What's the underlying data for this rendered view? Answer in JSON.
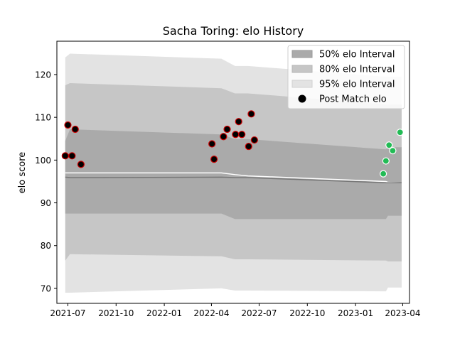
{
  "chart_data": {
    "type": "scatter",
    "title": "Sacha Toring: elo History",
    "xlabel": "",
    "ylabel": "elo score",
    "ylim": [
      66.5,
      127.8
    ],
    "xlim": [
      "2021-06-10",
      "2023-04-14"
    ],
    "x_ticks": [
      "2021-07",
      "2021-10",
      "2022-01",
      "2022-04",
      "2022-07",
      "2022-10",
      "2023-01",
      "2023-04"
    ],
    "y_ticks": [
      70,
      80,
      90,
      100,
      110,
      120
    ],
    "grid": false,
    "legend": {
      "position": "top-right",
      "entries": [
        "50% elo Interval",
        "80% elo Interval",
        "95% elo Interval",
        "Post Match elo"
      ]
    },
    "bands": {
      "x": [
        "2021-06-26",
        "2021-07-05",
        "2022-04-20",
        "2022-05-16",
        "2022-06-10",
        "2023-02-28",
        "2023-03-04",
        "2023-03-30"
      ],
      "mean": [
        96.0,
        95.9,
        96.0,
        95.9,
        95.9,
        94.7,
        94.7,
        94.7
      ],
      "q50_low": [
        87.5,
        87.5,
        87.5,
        86.2,
        86.2,
        86.2,
        87.0,
        87.0
      ],
      "q50_high": [
        104.5,
        107.2,
        106.0,
        104.9,
        104.9,
        102.5,
        103.0,
        103.0
      ],
      "q80_low": [
        76.5,
        78.0,
        77.5,
        76.8,
        76.8,
        76.5,
        76.3,
        76.3
      ],
      "q80_high": [
        117.5,
        118.0,
        116.8,
        115.6,
        115.6,
        113.0,
        113.0,
        113.0
      ],
      "q95_low": [
        69.0,
        69.0,
        70.0,
        69.5,
        69.5,
        69.3,
        70.2,
        70.2
      ],
      "q95_high": [
        124.0,
        124.9,
        123.7,
        122.0,
        122.0,
        119.5,
        119.5,
        119.5
      ],
      "band_colors": [
        "#aaaaaa",
        "#c6c6c6",
        "#e3e3e3"
      ],
      "mean_line_color": "#777777",
      "upper_line": [
        97.0,
        97.0,
        97.0,
        96.6,
        96.3,
        95.0,
        94.8,
        94.7
      ],
      "upper_line_color": "#ffffff"
    },
    "series": [
      {
        "name": "Post Match elo",
        "color": "#000000",
        "edge_color": "#cc0000",
        "x": [
          "2021-06-26",
          "2021-07-01",
          "2021-07-09",
          "2021-07-15",
          "2021-07-26",
          "2022-04-02",
          "2022-04-06",
          "2022-04-24",
          "2022-05-01",
          "2022-05-17",
          "2022-05-23",
          "2022-05-29",
          "2022-06-11",
          "2022-06-16",
          "2022-06-22"
        ],
        "y": [
          101.0,
          108.2,
          101.0,
          107.2,
          99.0,
          103.8,
          100.2,
          105.5,
          107.2,
          106.0,
          109.0,
          106.0,
          103.2,
          110.8,
          104.7
        ]
      },
      {
        "name": "",
        "color": "#22bb55",
        "edge_color": "#ffffff",
        "x": [
          "2023-02-23",
          "2023-02-28",
          "2023-03-06",
          "2023-03-13",
          "2023-03-27"
        ],
        "y": [
          96.8,
          99.8,
          103.5,
          102.2,
          106.5
        ]
      }
    ]
  }
}
